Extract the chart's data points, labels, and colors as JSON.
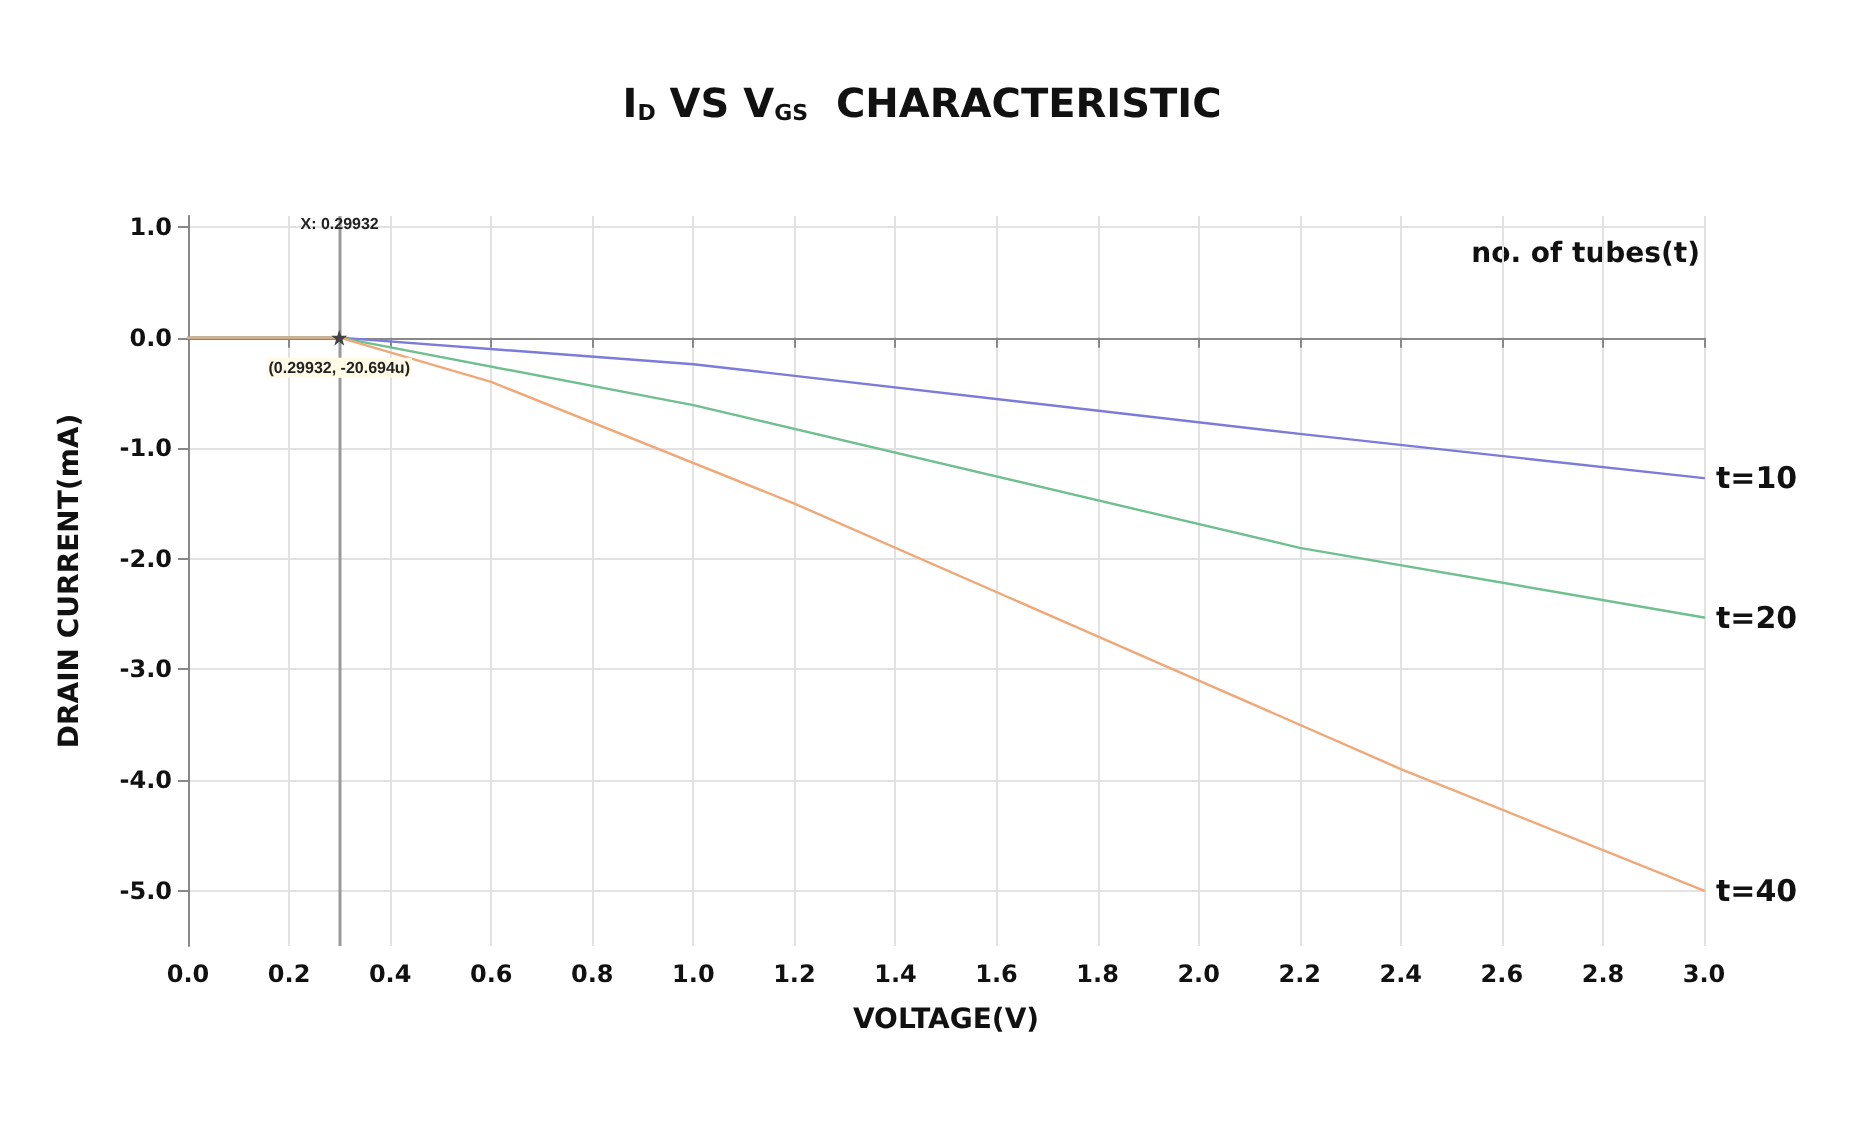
{
  "chart_data": {
    "type": "line",
    "title": "I$_{D}$ VS V$_{GS}$  CHARACTERISTIC",
    "xlabel": "VOLTAGE(V)",
    "ylabel": "DRAIN CURRENT(mA)",
    "legend_title": "no. of tubes(t)",
    "series": [
      {
        "name": "t=10",
        "color": "#7b7bd9",
        "x": [
          0,
          0.3,
          1.0,
          2.2,
          3.0
        ],
        "values": [
          0,
          0,
          -0.24,
          -0.87,
          -1.27
        ]
      },
      {
        "name": "t=20",
        "color": "#6fbf8f",
        "x": [
          0,
          0.3,
          1.0,
          2.2,
          3.0
        ],
        "values": [
          0,
          0,
          -0.61,
          -1.9,
          -2.53
        ]
      },
      {
        "name": "t=40",
        "color": "#f0a878",
        "x": [
          0,
          0.3,
          0.6,
          1.2,
          1.8,
          2.4,
          3.0
        ],
        "values": [
          0,
          0,
          -0.4,
          -1.5,
          -2.7,
          -3.9,
          -5.0
        ]
      }
    ],
    "xlim": [
      0,
      3.0
    ],
    "ylim": [
      -5.5,
      1.1
    ],
    "xticks": [
      {
        "value": 0,
        "label": "0.0"
      },
      0.2,
      0.4,
      0.6,
      0.8,
      {
        "value": 1,
        "label": "1.0"
      },
      1.2,
      1.4,
      1.6,
      1.8,
      {
        "value": 2,
        "label": "2.0"
      },
      2.2,
      2.4,
      2.6,
      2.8,
      {
        "value": 3,
        "label": "3.0"
      }
    ],
    "yticks": [
      {
        "value": 1,
        "label": "1.0"
      },
      {
        "value": 0,
        "label": "0.0"
      },
      {
        "value": -1,
        "label": "-1.0"
      },
      {
        "value": -2,
        "label": "-2.0"
      },
      {
        "value": -3,
        "label": "-3.0"
      },
      {
        "value": -4,
        "label": "-4.0"
      },
      {
        "value": -5,
        "label": "-5.0"
      }
    ],
    "ref_lines": [
      {
        "axis": "x",
        "value": 0.29932,
        "label": "X: 0.29932",
        "color": "#999999"
      }
    ],
    "annotations": [
      {
        "text": "(0.29932, -20.694u)",
        "x": 0.29932,
        "y": 0
      }
    ],
    "grid": true,
    "legend": false,
    "marker": "none",
    "line_style": "solid"
  }
}
